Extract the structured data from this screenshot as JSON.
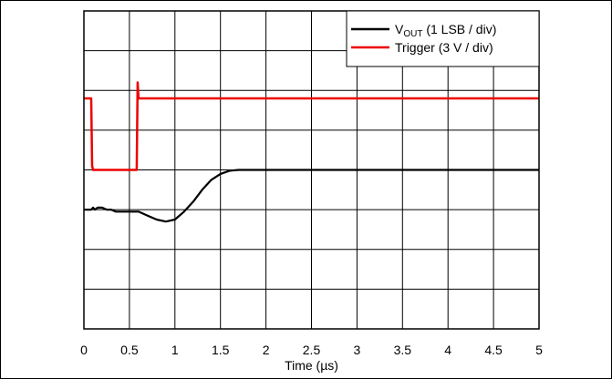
{
  "chart_data": {
    "type": "line",
    "title": "",
    "xlabel": "Time (µs)",
    "ylabel": "",
    "xlim": [
      0,
      5
    ],
    "ylim": [
      0,
      8
    ],
    "x_ticks": [
      "0",
      "0.5",
      "1",
      "1.5",
      "2",
      "2.5",
      "3",
      "3.5",
      "4",
      "4.5",
      "5"
    ],
    "y_divisions": 8,
    "grid": true,
    "legend_position": "top-right",
    "series": [
      {
        "name": "V_OUT (1 LSB / div)",
        "name_main": "V",
        "name_sub": "OUT",
        "name_rest": " (1 LSB / div)",
        "color": "#000000",
        "x": [
          0,
          0.05,
          0.08,
          0.1,
          0.12,
          0.15,
          0.2,
          0.25,
          0.3,
          0.35,
          0.4,
          0.5,
          0.6,
          0.7,
          0.8,
          0.9,
          1.0,
          1.1,
          1.2,
          1.3,
          1.4,
          1.5,
          1.6,
          1.7,
          1.8,
          2.0,
          2.5,
          3.0,
          3.5,
          4.0,
          4.5,
          5.0
        ],
        "y": [
          3.0,
          3.0,
          3.0,
          3.05,
          3.0,
          3.05,
          3.05,
          3.0,
          3.0,
          2.95,
          2.95,
          2.95,
          2.95,
          2.85,
          2.75,
          2.7,
          2.75,
          2.95,
          3.2,
          3.5,
          3.75,
          3.9,
          3.98,
          4.0,
          4.0,
          4.0,
          4.0,
          4.0,
          4.0,
          4.0,
          4.0,
          4.0
        ]
      },
      {
        "name": "Trigger (3 V / div)",
        "color": "#ee0000",
        "x": [
          0,
          0.08,
          0.09,
          0.1,
          0.58,
          0.59,
          0.6,
          5.0
        ],
        "y": [
          5.8,
          5.8,
          4.1,
          4.0,
          4.0,
          6.2,
          5.8,
          5.8
        ]
      }
    ]
  }
}
